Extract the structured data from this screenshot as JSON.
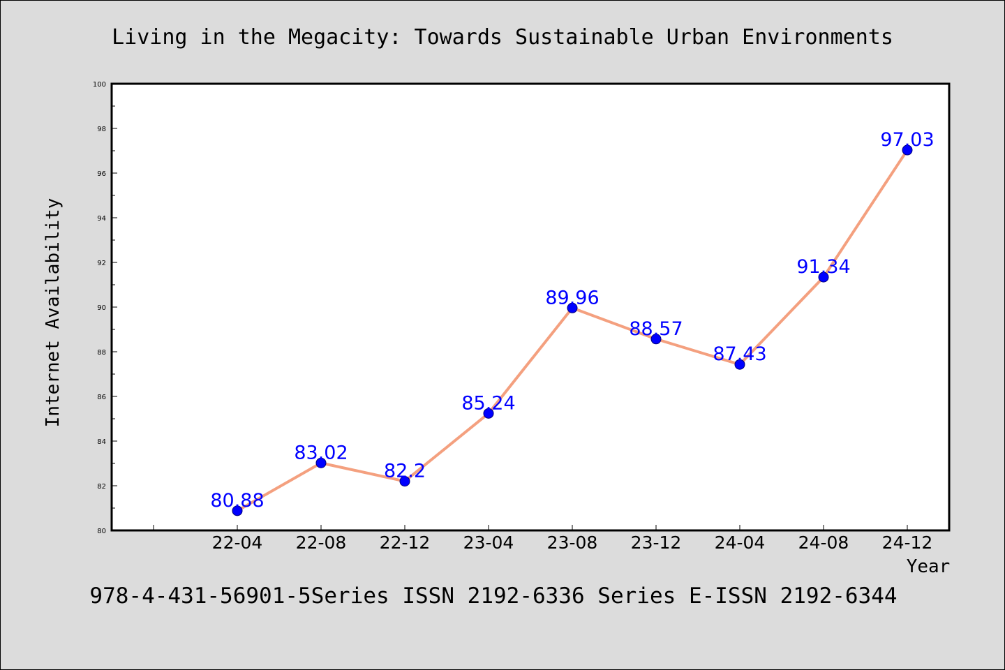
{
  "chart_data": {
    "type": "line",
    "title": "Living in the Megacity: Towards Sustainable Urban Environments",
    "xlabel": "Year",
    "ylabel": "Internet Availability",
    "categories": [
      "22-04",
      "22-08",
      "22-12",
      "23-04",
      "23-08",
      "23-12",
      "24-04",
      "24-08",
      "24-12"
    ],
    "series": [
      {
        "values": [
          80.88,
          83.02,
          82.2,
          85.24,
          89.96,
          88.57,
          87.43,
          91.34,
          97.03
        ],
        "labels": [
          "80.88",
          "83.02",
          "82.2",
          "85.24",
          "89.96",
          "88.57",
          "87.43",
          "91.34",
          "97.03"
        ],
        "line_color": "#f4a07f",
        "marker_color": "#0000ff"
      }
    ],
    "ylim": [
      80,
      100
    ],
    "yticks": [
      "80",
      "82",
      "84",
      "86",
      "88",
      "90",
      "92",
      "94",
      "96",
      "98",
      "100"
    ],
    "grid": false,
    "footer": "978-4-431-56901-5Series ISSN 2192-6336 Series E-ISSN 2192-6344"
  }
}
